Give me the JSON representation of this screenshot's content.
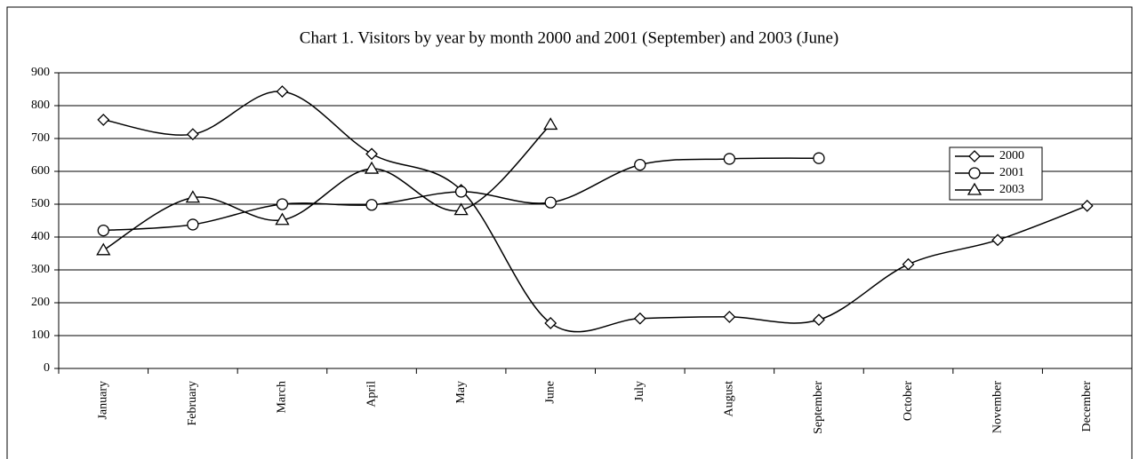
{
  "chart_data": {
    "type": "line",
    "title": "Chart 1. Visitors by year by month 2000 and 2001 (September) and 2003 (June)",
    "categories": [
      "January",
      "February",
      "March",
      "April",
      "May",
      "June",
      "July",
      "August",
      "September",
      "October",
      "November",
      "December"
    ],
    "series": [
      {
        "name": "2000",
        "color": "#000000",
        "marker": "diamond",
        "values": [
          757,
          713,
          843,
          653,
          543,
          138,
          152,
          157,
          148,
          317,
          391,
          495
        ]
      },
      {
        "name": "2001",
        "color": "#000000",
        "marker": "circle",
        "values": [
          420,
          438,
          500,
          498,
          538,
          505,
          620,
          638,
          640,
          null,
          null,
          null
        ]
      },
      {
        "name": "2003",
        "color": "#000000",
        "marker": "triangle",
        "values": [
          360,
          520,
          452,
          608,
          482,
          742,
          null,
          null,
          null,
          null,
          null,
          null
        ]
      }
    ],
    "ylim": [
      0,
      900
    ],
    "yticks": [
      0,
      100,
      200,
      300,
      400,
      500,
      600,
      700,
      800,
      900
    ],
    "grid": true,
    "smooth": true,
    "legend": "right"
  }
}
